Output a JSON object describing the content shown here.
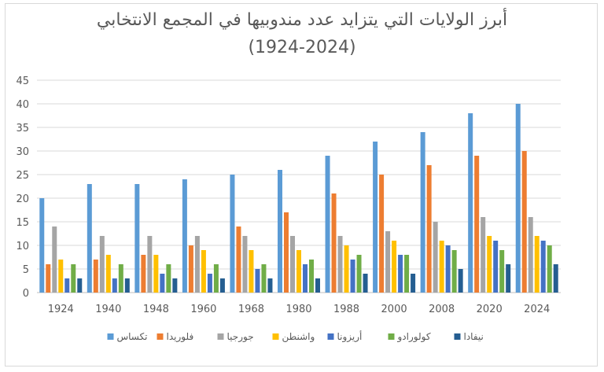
{
  "chart_data": {
    "type": "bar",
    "title": "أبرز الولايات التي يتزايد عدد مندوبيها في المجمع الانتخابي",
    "subtitle": "(1924-2024)",
    "xlabel": "",
    "ylabel": "",
    "ylim": [
      0,
      45
    ],
    "yticks": [
      0,
      5,
      10,
      15,
      20,
      25,
      30,
      35,
      40,
      45
    ],
    "grid": true,
    "legend": "bottom",
    "categories": [
      "1924",
      "1940",
      "1948",
      "1960",
      "1968",
      "1980",
      "1988",
      "2000",
      "2008",
      "2020",
      "2024"
    ],
    "series": [
      {
        "name": "تكساس",
        "color": "#5b9bd5",
        "values": [
          20,
          23,
          23,
          24,
          25,
          26,
          29,
          32,
          34,
          38,
          40
        ]
      },
      {
        "name": "فلوريدا",
        "color": "#ed7d31",
        "values": [
          6,
          7,
          8,
          10,
          14,
          17,
          21,
          25,
          27,
          29,
          30
        ]
      },
      {
        "name": "جورجيا",
        "color": "#a5a5a5",
        "values": [
          14,
          12,
          12,
          12,
          12,
          12,
          12,
          13,
          15,
          16,
          16
        ]
      },
      {
        "name": "واشنطن",
        "color": "#ffc000",
        "values": [
          7,
          8,
          8,
          9,
          9,
          9,
          10,
          11,
          11,
          12,
          12
        ]
      },
      {
        "name": "أريزونا",
        "color": "#4472c4",
        "values": [
          3,
          3,
          4,
          4,
          5,
          6,
          7,
          8,
          10,
          11,
          11
        ]
      },
      {
        "name": "كولورادو",
        "color": "#70ad47",
        "values": [
          6,
          6,
          6,
          6,
          6,
          7,
          8,
          8,
          9,
          9,
          10
        ]
      },
      {
        "name": "نيفادا",
        "color": "#255e91",
        "values": [
          3,
          3,
          3,
          3,
          3,
          3,
          4,
          4,
          5,
          6,
          6
        ]
      }
    ]
  }
}
